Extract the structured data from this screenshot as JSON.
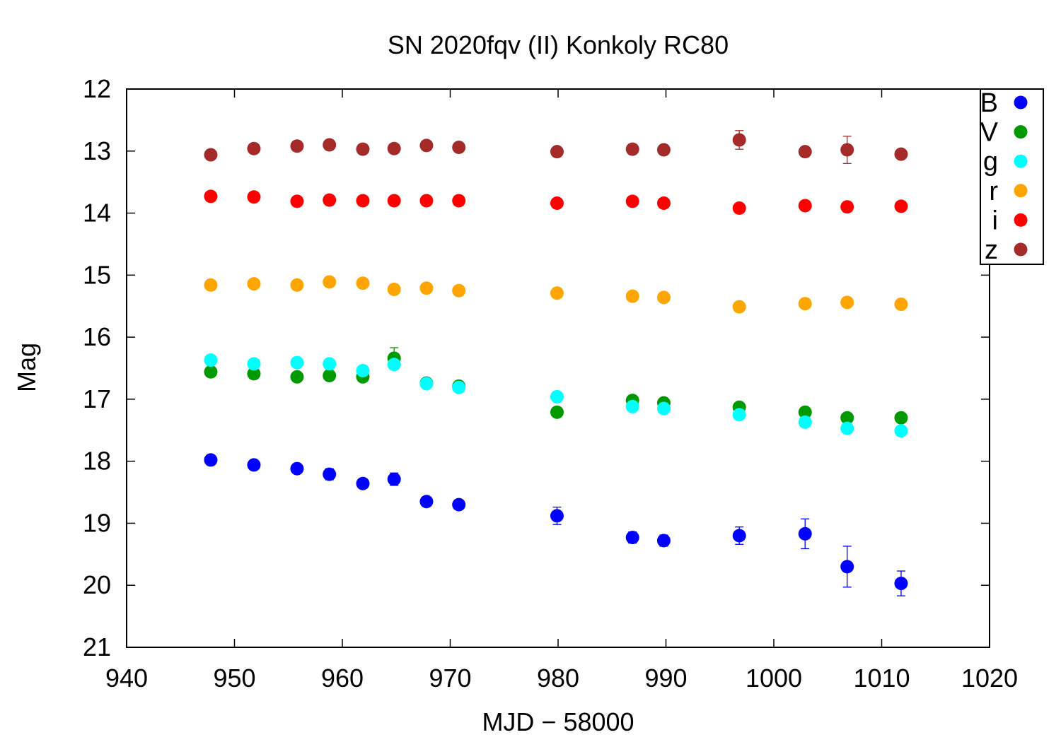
{
  "chart_data": {
    "type": "scatter",
    "title": "SN 2020fqv (II) Konkoly RC80",
    "xlabel": "MJD − 58000",
    "ylabel": "Mag",
    "xlim": [
      940,
      1020
    ],
    "ylim": [
      12,
      21
    ],
    "y_inverted": true,
    "xticks": [
      940,
      950,
      960,
      970,
      980,
      990,
      1000,
      1010,
      1020
    ],
    "yticks": [
      12,
      13,
      14,
      15,
      16,
      17,
      18,
      19,
      20,
      21
    ],
    "grid": false,
    "legend_position": "top-right",
    "series": [
      {
        "name": "B",
        "color": "#0000ff",
        "x": [
          947.8,
          951.8,
          955.8,
          958.8,
          961.9,
          964.8,
          967.8,
          970.8,
          979.9,
          986.9,
          989.8,
          996.8,
          1002.9,
          1006.8,
          1011.8
        ],
        "y": [
          17.98,
          18.06,
          18.12,
          18.21,
          18.36,
          18.29,
          18.65,
          18.7,
          18.88,
          19.23,
          19.28,
          19.2,
          19.17,
          19.7,
          19.97
        ],
        "err": [
          0.04,
          0.04,
          0.05,
          0.09,
          0.06,
          0.1,
          0.05,
          0.05,
          0.14,
          0.09,
          0.09,
          0.14,
          0.24,
          0.33,
          0.2
        ]
      },
      {
        "name": "V",
        "color": "#009900",
        "x": [
          947.8,
          951.8,
          955.8,
          958.8,
          961.9,
          964.8,
          967.8,
          970.8,
          979.9,
          986.9,
          989.8,
          996.8,
          1002.9,
          1006.8,
          1011.8
        ],
        "y": [
          16.56,
          16.59,
          16.64,
          16.62,
          16.64,
          16.34,
          16.74,
          16.79,
          17.21,
          17.02,
          17.06,
          17.13,
          17.21,
          17.3,
          17.3
        ],
        "err": [
          0.03,
          0.03,
          0.03,
          0.03,
          0.03,
          0.17,
          0.03,
          0.03,
          0.05,
          0.04,
          0.04,
          0.05,
          0.05,
          0.05,
          0.06
        ]
      },
      {
        "name": "g",
        "color": "#00ffff",
        "x": [
          947.8,
          951.8,
          955.8,
          958.8,
          961.9,
          964.8,
          967.8,
          970.8,
          979.9,
          986.9,
          989.8,
          996.8,
          1002.9,
          1006.8,
          1011.8
        ],
        "y": [
          16.37,
          16.43,
          16.41,
          16.43,
          16.54,
          16.44,
          16.75,
          16.81,
          16.96,
          17.12,
          17.15,
          17.25,
          17.37,
          17.47,
          17.51
        ],
        "err": [
          0.02,
          0.02,
          0.02,
          0.02,
          0.03,
          0.04,
          0.02,
          0.03,
          0.03,
          0.03,
          0.03,
          0.04,
          0.04,
          0.04,
          0.04
        ]
      },
      {
        "name": "r",
        "color": "#ffa500",
        "x": [
          947.8,
          951.8,
          955.8,
          958.8,
          961.9,
          964.8,
          967.8,
          970.8,
          979.9,
          986.9,
          989.8,
          996.8,
          1002.9,
          1006.8,
          1011.8
        ],
        "y": [
          15.16,
          15.14,
          15.16,
          15.11,
          15.13,
          15.23,
          15.21,
          15.25,
          15.29,
          15.34,
          15.36,
          15.51,
          15.46,
          15.44,
          15.47
        ],
        "err": [
          0.02,
          0.02,
          0.02,
          0.02,
          0.02,
          0.02,
          0.02,
          0.02,
          0.02,
          0.02,
          0.02,
          0.03,
          0.02,
          0.02,
          0.03
        ]
      },
      {
        "name": "i",
        "color": "#ff0000",
        "x": [
          947.8,
          951.8,
          955.8,
          958.8,
          961.9,
          964.8,
          967.8,
          970.8,
          979.9,
          986.9,
          989.8,
          996.8,
          1002.9,
          1006.8,
          1011.8
        ],
        "y": [
          13.73,
          13.74,
          13.81,
          13.79,
          13.8,
          13.8,
          13.8,
          13.8,
          13.84,
          13.81,
          13.84,
          13.92,
          13.88,
          13.9,
          13.89
        ],
        "err": [
          0.02,
          0.02,
          0.02,
          0.02,
          0.02,
          0.02,
          0.02,
          0.02,
          0.02,
          0.02,
          0.02,
          0.03,
          0.02,
          0.02,
          0.02
        ]
      },
      {
        "name": "z",
        "color": "#a52a2a",
        "x": [
          947.8,
          951.8,
          955.8,
          958.8,
          961.9,
          964.8,
          967.8,
          970.8,
          979.9,
          986.9,
          989.8,
          996.8,
          1002.9,
          1006.8,
          1011.8
        ],
        "y": [
          13.06,
          12.96,
          12.92,
          12.9,
          12.97,
          12.96,
          12.91,
          12.94,
          13.01,
          12.97,
          12.98,
          12.82,
          13.01,
          12.98,
          13.05
        ],
        "err": [
          0.02,
          0.02,
          0.02,
          0.02,
          0.02,
          0.02,
          0.02,
          0.02,
          0.02,
          0.02,
          0.02,
          0.15,
          0.02,
          0.22,
          0.02
        ]
      }
    ]
  }
}
